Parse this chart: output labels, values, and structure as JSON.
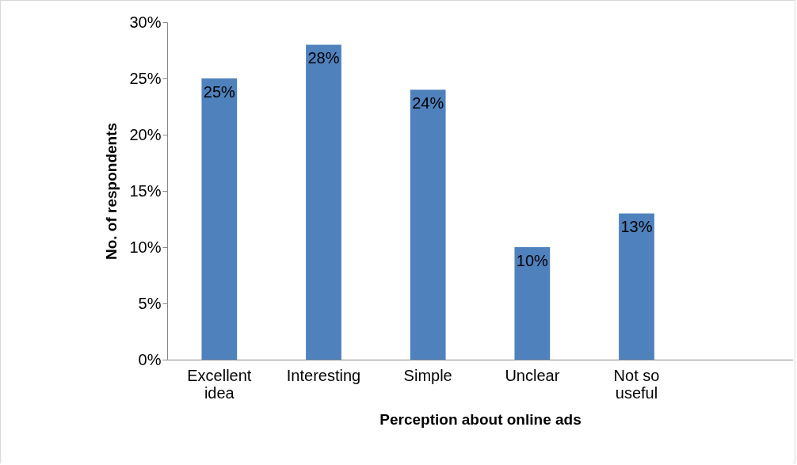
{
  "chart_data": {
    "type": "bar",
    "xlabel": "Perception about online ads",
    "ylabel": "No. of respondents",
    "categories": [
      "Excellent idea",
      "Interesting",
      "Simple",
      "Unclear",
      "Not so useful",
      null
    ],
    "values": [
      25,
      28,
      24,
      10,
      13,
      null
    ],
    "value_labels": [
      "25%",
      "28%",
      "24%",
      "10%",
      "13%",
      null
    ],
    "color": "#4f81bd",
    "ylim": [
      0,
      30
    ],
    "yticks": [
      {
        "value": 0,
        "label": "0%"
      },
      {
        "value": 5,
        "label": "5%"
      },
      {
        "value": 10,
        "label": "10%"
      },
      {
        "value": 15,
        "label": "15%"
      },
      {
        "value": 20,
        "label": "20%"
      },
      {
        "value": 25,
        "label": "25%"
      },
      {
        "value": 30,
        "label": "30%"
      }
    ],
    "grid": false
  }
}
